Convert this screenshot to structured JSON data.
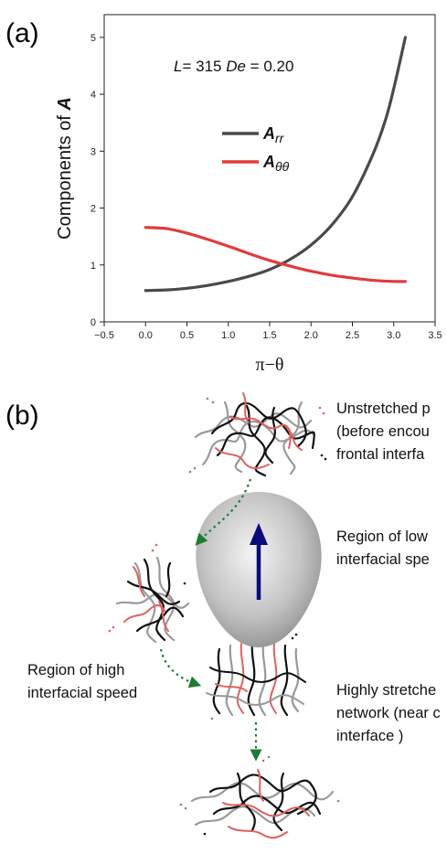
{
  "panel_a": {
    "letter": "(a)"
  },
  "panel_b": {
    "letter": "(b)"
  },
  "chart_data": {
    "type": "line",
    "ylabel_prefix": "Components of ",
    "ylabel_symbol": "A",
    "xlabel": "π−θ",
    "annotation_L": "L",
    "annotation_L_value": "= 315 ",
    "annotation_De": "De",
    "annotation_De_value": " = 0.20",
    "xlim": [
      -0.5,
      3.5
    ],
    "ylim": [
      0,
      5.4
    ],
    "xticks": [
      -0.5,
      0.0,
      0.5,
      1.0,
      1.5,
      2.0,
      2.5,
      3.0,
      3.5
    ],
    "xtick_labels": [
      "−0.5",
      "0.0",
      "0.5",
      "1.0",
      "1.5",
      "2.0",
      "2.5",
      "3.0",
      "3.5"
    ],
    "yticks": [
      0,
      1,
      2,
      3,
      4,
      5
    ],
    "ytick_labels": [
      "0",
      "1",
      "2",
      "3",
      "4",
      "5"
    ],
    "legend_position": "upper-left-center",
    "series": [
      {
        "name_main": "A",
        "name_sub": "rr",
        "color": "#4a4a4a",
        "x": [
          0.0,
          0.25,
          0.5,
          0.75,
          1.0,
          1.25,
          1.5,
          1.75,
          2.0,
          2.25,
          2.5,
          2.75,
          2.9,
          3.0,
          3.14
        ],
        "y": [
          0.55,
          0.56,
          0.59,
          0.64,
          0.71,
          0.8,
          0.92,
          1.1,
          1.35,
          1.7,
          2.2,
          2.95,
          3.55,
          4.1,
          5.0
        ]
      },
      {
        "name_main": "A",
        "name_sub": "θθ",
        "color": "#e03c3c",
        "x": [
          0.0,
          0.25,
          0.5,
          0.75,
          1.0,
          1.25,
          1.5,
          1.75,
          2.0,
          2.25,
          2.5,
          2.75,
          3.0,
          3.14
        ],
        "y": [
          1.66,
          1.64,
          1.56,
          1.45,
          1.33,
          1.2,
          1.08,
          0.98,
          0.89,
          0.82,
          0.77,
          0.73,
          0.71,
          0.71
        ]
      }
    ]
  },
  "diagram": {
    "label_top_line1": "Unstretched p",
    "label_top_line2": "(before encou",
    "label_top_line3": "frontal interfa",
    "label_right_line1": "Region of low",
    "label_right_line2": "interfacial spe",
    "label_left_line1": "Region of high",
    "label_left_line2": "interfacial speed",
    "label_bottom_line1": "Highly stretche",
    "label_bottom_line2": "network (near c",
    "label_bottom_line3": "interface )",
    "colors": {
      "polymer_black": "#111111",
      "polymer_gray": "#999999",
      "polymer_red": "#e06060",
      "bubble_gradient_center": "#f2f2f2",
      "bubble_gradient_edge": "#8c8c8c",
      "arrow_blue": "#0a0a7a",
      "path_green": "#1f7a33"
    }
  }
}
